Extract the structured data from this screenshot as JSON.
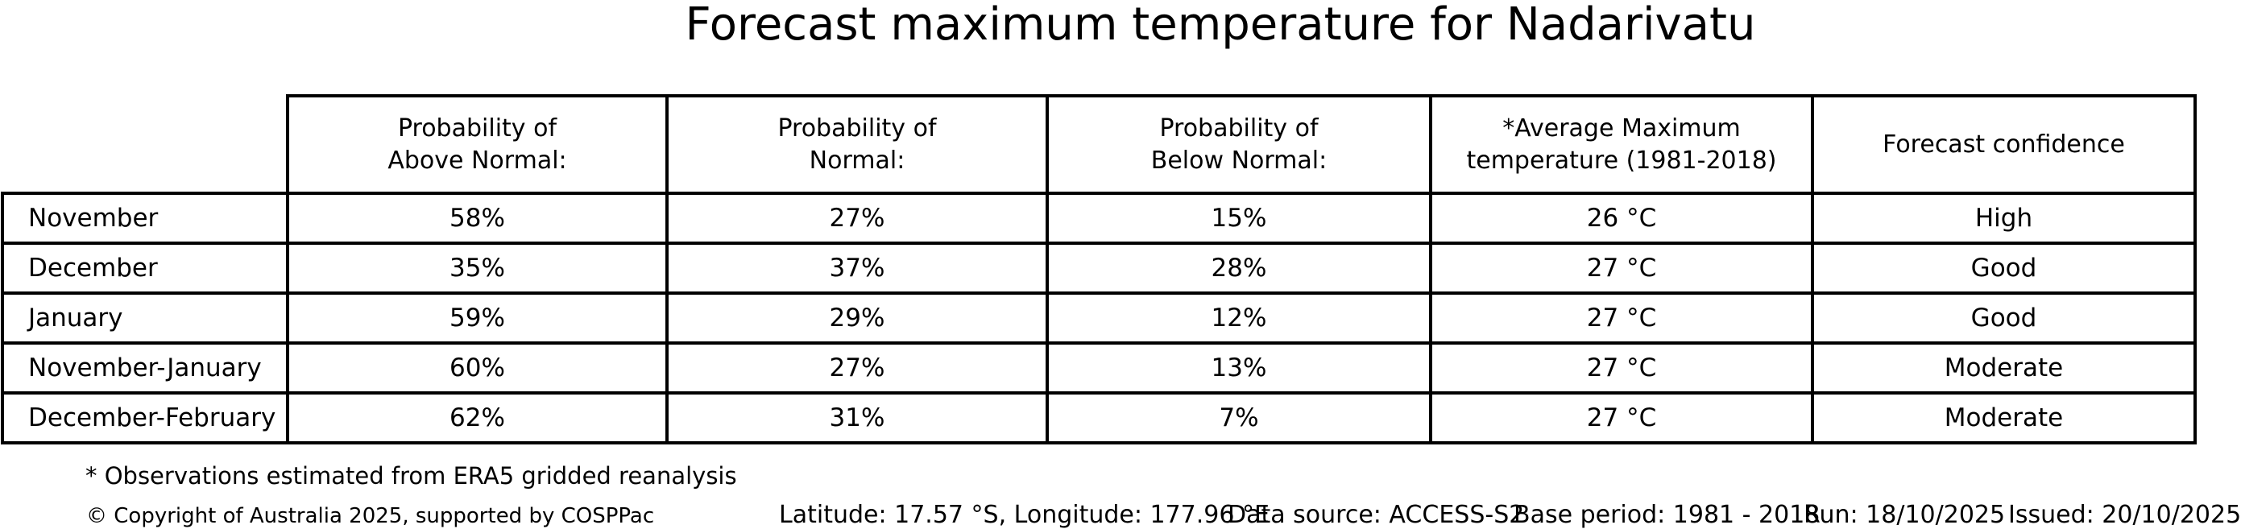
{
  "title": "Forecast maximum temperature for Nadarivatu",
  "chart_data": {
    "type": "table",
    "title": "Forecast maximum temperature for Nadarivatu",
    "columns": [
      "",
      "Probability of\nAbove Normal:",
      "Probability of\nNormal:",
      "Probability of\nBelow Normal:",
      "*Average Maximum\ntemperature (1981-2018)",
      "Forecast confidence"
    ],
    "rows": [
      [
        "November",
        "58%",
        "27%",
        "15%",
        "26 °C",
        "High"
      ],
      [
        "December",
        "35%",
        "37%",
        "28%",
        "27 °C",
        "Good"
      ],
      [
        "January",
        "59%",
        "29%",
        "12%",
        "27 °C",
        "Good"
      ],
      [
        "November-January",
        "60%",
        "27%",
        "13%",
        "27 °C",
        "Moderate"
      ],
      [
        "December-February",
        "62%",
        "31%",
        "7%",
        "27 °C",
        "Moderate"
      ]
    ],
    "probabilities_above_normal_pct": [
      58,
      35,
      59,
      60,
      62
    ],
    "probabilities_normal_pct": [
      27,
      37,
      29,
      27,
      31
    ],
    "probabilities_below_normal_pct": [
      15,
      28,
      12,
      13,
      7
    ],
    "average_max_temperature_c": [
      26,
      27,
      27,
      27,
      27
    ],
    "forecast_confidence": [
      "High",
      "Good",
      "Good",
      "Moderate",
      "Moderate"
    ]
  },
  "footnote": "* Observations estimated from ERA5 gridded reanalysis",
  "footer": {
    "copyright": "© Copyright of Australia 2025, supported by COSPPac",
    "location": "Latitude: 17.57 °S, Longitude: 177.96 °E",
    "data_source": "Data source: ACCESS-S2",
    "base_period": "Base period: 1981 - 2018",
    "run": "Run: 18/10/2025",
    "issued": "Issued: 20/10/2025"
  }
}
